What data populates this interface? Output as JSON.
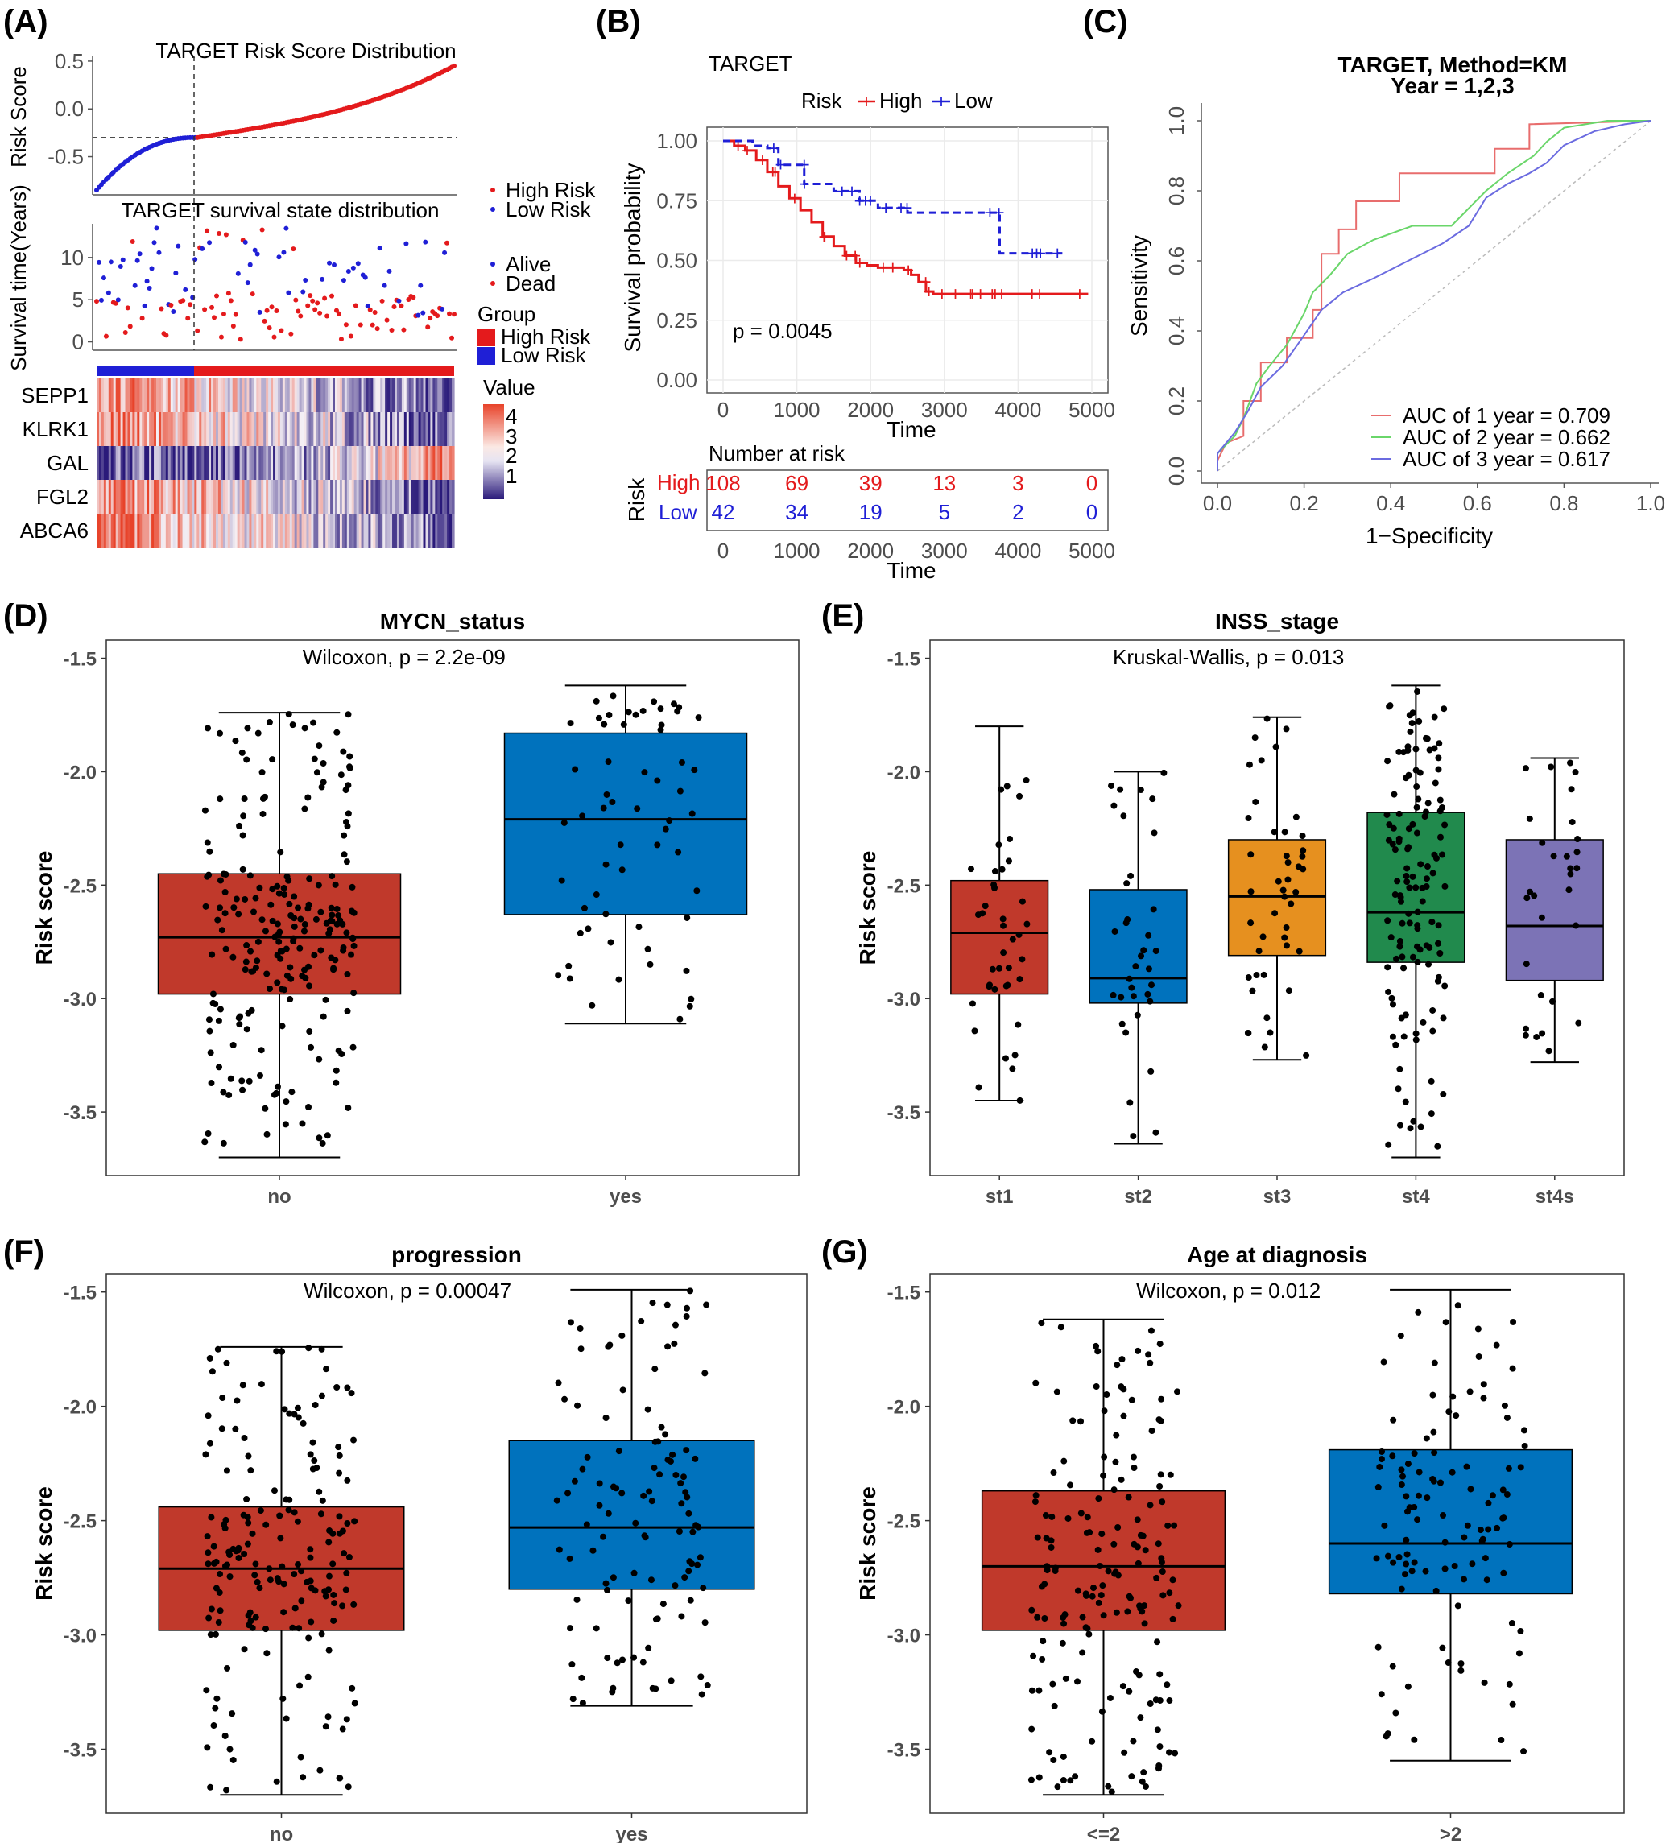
{
  "panel_labels": [
    "(A)",
    "(B)",
    "(C)",
    "(D)",
    "(E)",
    "(F)",
    "(G)"
  ],
  "colors": {
    "high": "#e41a1c",
    "low": "#1f1fd6",
    "red_box": "#c0392b",
    "blue_box": "#0072bd",
    "orange_box": "#e6901f",
    "green_box": "#218a4d",
    "purple_box": "#7c73b6",
    "roc1": "#e86d6d",
    "roc2": "#6ad66a",
    "roc3": "#6b6be0"
  },
  "chart_data": [
    {
      "id": "A-risk",
      "type": "scatter",
      "title": "TARGET Risk Score Distribution",
      "ylabel": "Risk Score",
      "yticks": [
        "0.5",
        "0.0",
        "-0.5"
      ],
      "ylim": [
        -0.9,
        0.55
      ],
      "n_samples": 150,
      "n_low": 42,
      "cutoff": -0.3,
      "min_score": -0.85,
      "max_score": 0.45
    },
    {
      "id": "A-surv",
      "type": "scatter",
      "title": "TARGET survival state distribution",
      "ylabel": "Survival time(Years)",
      "yticks": [
        "10",
        "5",
        "0"
      ],
      "ylim": [
        -1,
        14
      ],
      "legend_risk": [
        "High Risk",
        "Low Risk"
      ],
      "legend_status": [
        "Alive",
        "Dead"
      ]
    },
    {
      "id": "A-heatmap",
      "type": "heatmap",
      "genes": [
        "SEPP1",
        "KLRK1",
        "GAL",
        "FGL2",
        "ABCA6"
      ],
      "group_title": "Group",
      "groups": [
        "High Risk",
        "Low Risk"
      ],
      "value_title": "Value",
      "value_ticks": [
        "4",
        "3",
        "2",
        "1"
      ]
    },
    {
      "id": "B-km",
      "type": "line",
      "title": "TARGET",
      "legend_title": "Risk",
      "legend": [
        "High",
        "Low"
      ],
      "xlabel": "Time",
      "ylabel": "Survival probability",
      "xticks": [
        "0",
        "1000",
        "2000",
        "3000",
        "4000",
        "5000"
      ],
      "yticks": [
        "1.00",
        "0.75",
        "0.50",
        "0.25",
        "0.00"
      ],
      "xlim": [
        0,
        5000
      ],
      "ylim": [
        0,
        1
      ],
      "p_value": "p = 0.0045",
      "series": [
        {
          "name": "High",
          "points": [
            [
              0,
              1
            ],
            [
              150,
              0.98
            ],
            [
              300,
              0.96
            ],
            [
              450,
              0.92
            ],
            [
              600,
              0.87
            ],
            [
              750,
              0.81
            ],
            [
              900,
              0.76
            ],
            [
              1050,
              0.71
            ],
            [
              1200,
              0.66
            ],
            [
              1350,
              0.6
            ],
            [
              1500,
              0.56
            ],
            [
              1650,
              0.52
            ],
            [
              1800,
              0.49
            ],
            [
              1950,
              0.48
            ],
            [
              2100,
              0.47
            ],
            [
              2300,
              0.47
            ],
            [
              2450,
              0.46
            ],
            [
              2550,
              0.44
            ],
            [
              2650,
              0.41
            ],
            [
              2750,
              0.37
            ],
            [
              2850,
              0.36
            ],
            [
              4950,
              0.36
            ]
          ]
        },
        {
          "name": "Low",
          "points": [
            [
              0,
              1
            ],
            [
              300,
              1
            ],
            [
              400,
              0.98
            ],
            [
              600,
              0.97
            ],
            [
              750,
              0.9
            ],
            [
              1100,
              0.82
            ],
            [
              1500,
              0.79
            ],
            [
              1850,
              0.75
            ],
            [
              2100,
              0.72
            ],
            [
              2500,
              0.7
            ],
            [
              3300,
              0.7
            ],
            [
              3700,
              0.7
            ],
            [
              3750,
              0.53
            ],
            [
              4600,
              0.53
            ]
          ]
        }
      ]
    },
    {
      "id": "B-risktable",
      "type": "table",
      "title": "Number at risk",
      "xlabel": "Time",
      "ylabel": "Risk",
      "rows": [
        {
          "name": "High",
          "values": [
            "108",
            "69",
            "39",
            "13",
            "3",
            "0"
          ]
        },
        {
          "name": "Low",
          "values": [
            "42",
            "34",
            "19",
            "5",
            "2",
            "0"
          ]
        }
      ]
    },
    {
      "id": "C-roc",
      "type": "line",
      "title": "TARGET, Method=KM",
      "subtitle": "Year = 1,2,3",
      "xlabel": "1−Specificity",
      "ylabel": "Sensitivity",
      "xticks": [
        "0.0",
        "0.2",
        "0.4",
        "0.6",
        "0.8",
        "1.0"
      ],
      "yticks": [
        "0.0",
        "0.2",
        "0.4",
        "0.6",
        "0.8",
        "1.0"
      ],
      "xlim": [
        0,
        1
      ],
      "ylim": [
        0,
        1
      ],
      "series": [
        {
          "name": "AUC of 1 year = 0.709",
          "points": [
            [
              0,
              0
            ],
            [
              0,
              0.03
            ],
            [
              0.02,
              0.08
            ],
            [
              0.06,
              0.1
            ],
            [
              0.06,
              0.2
            ],
            [
              0.1,
              0.2
            ],
            [
              0.1,
              0.31
            ],
            [
              0.16,
              0.31
            ],
            [
              0.16,
              0.38
            ],
            [
              0.22,
              0.38
            ],
            [
              0.22,
              0.46
            ],
            [
              0.24,
              0.46
            ],
            [
              0.24,
              0.62
            ],
            [
              0.28,
              0.62
            ],
            [
              0.28,
              0.69
            ],
            [
              0.32,
              0.69
            ],
            [
              0.32,
              0.77
            ],
            [
              0.42,
              0.77
            ],
            [
              0.42,
              0.85
            ],
            [
              0.64,
              0.85
            ],
            [
              0.64,
              0.92
            ],
            [
              0.72,
              0.92
            ],
            [
              0.72,
              0.99
            ],
            [
              1,
              1
            ]
          ]
        },
        {
          "name": "AUC of 2 year = 0.662",
          "points": [
            [
              0,
              0
            ],
            [
              0,
              0.05
            ],
            [
              0.04,
              0.1
            ],
            [
              0.06,
              0.15
            ],
            [
              0.09,
              0.25
            ],
            [
              0.12,
              0.3
            ],
            [
              0.16,
              0.36
            ],
            [
              0.2,
              0.45
            ],
            [
              0.22,
              0.51
            ],
            [
              0.26,
              0.56
            ],
            [
              0.3,
              0.62
            ],
            [
              0.36,
              0.66
            ],
            [
              0.45,
              0.7
            ],
            [
              0.54,
              0.7
            ],
            [
              0.58,
              0.75
            ],
            [
              0.62,
              0.8
            ],
            [
              0.67,
              0.85
            ],
            [
              0.73,
              0.9
            ],
            [
              0.76,
              0.94
            ],
            [
              0.8,
              0.98
            ],
            [
              0.9,
              1
            ],
            [
              1,
              1
            ]
          ]
        },
        {
          "name": "AUC of 3 year = 0.617",
          "points": [
            [
              0,
              0
            ],
            [
              0,
              0.05
            ],
            [
              0.04,
              0.11
            ],
            [
              0.07,
              0.17
            ],
            [
              0.1,
              0.24
            ],
            [
              0.15,
              0.3
            ],
            [
              0.19,
              0.37
            ],
            [
              0.24,
              0.46
            ],
            [
              0.29,
              0.51
            ],
            [
              0.36,
              0.55
            ],
            [
              0.44,
              0.6
            ],
            [
              0.52,
              0.65
            ],
            [
              0.58,
              0.7
            ],
            [
              0.62,
              0.78
            ],
            [
              0.67,
              0.82
            ],
            [
              0.72,
              0.85
            ],
            [
              0.76,
              0.88
            ],
            [
              0.8,
              0.93
            ],
            [
              0.87,
              0.97
            ],
            [
              0.94,
              0.99
            ],
            [
              1,
              1
            ]
          ]
        }
      ]
    },
    {
      "id": "D",
      "type": "bar",
      "subtype": "boxplot",
      "title": "MYCN_status",
      "stat": "Wilcoxon, p = 2.2e-09",
      "ylabel": "Risk score",
      "yticks": [
        "-1.5",
        "-2.0",
        "-2.5",
        "-3.0",
        "-3.5"
      ],
      "ylim": [
        -3.78,
        -1.42
      ],
      "groups": [
        {
          "label": "no",
          "color": "#c0392b",
          "n": 220,
          "min": -3.7,
          "q1": -2.98,
          "median": -2.73,
          "q3": -2.45,
          "max": -1.74,
          "spread": 0.62
        },
        {
          "label": "yes",
          "color": "#0072bd",
          "n": 60,
          "min": -3.11,
          "q1": -2.63,
          "median": -2.21,
          "q3": -1.83,
          "max": -1.62,
          "spread": 0.62
        }
      ]
    },
    {
      "id": "E",
      "type": "bar",
      "subtype": "boxplot",
      "title": "INSS_stage",
      "stat": "Kruskal-Wallis, p = 0.013",
      "ylabel": "Risk score",
      "yticks": [
        "-1.5",
        "-2.0",
        "-2.5",
        "-3.0",
        "-3.5"
      ],
      "ylim": [
        -3.78,
        -1.42
      ],
      "groups": [
        {
          "label": "st1",
          "color": "#c0392b",
          "n": 40,
          "min": -3.45,
          "q1": -2.98,
          "median": -2.71,
          "q3": -2.48,
          "max": -1.8,
          "spread": 0.6
        },
        {
          "label": "st2",
          "color": "#0072bd",
          "n": 35,
          "min": -3.64,
          "q1": -3.02,
          "median": -2.91,
          "q3": -2.52,
          "max": -2.0,
          "spread": 0.6
        },
        {
          "label": "st3",
          "color": "#e6901f",
          "n": 45,
          "min": -3.27,
          "q1": -2.81,
          "median": -2.55,
          "q3": -2.3,
          "max": -1.76,
          "spread": 0.6
        },
        {
          "label": "st4",
          "color": "#218a4d",
          "n": 130,
          "min": -3.7,
          "q1": -2.84,
          "median": -2.62,
          "q3": -2.18,
          "max": -1.62,
          "spread": 0.6
        },
        {
          "label": "st4s",
          "color": "#7c73b6",
          "n": 30,
          "min": -3.28,
          "q1": -2.92,
          "median": -2.68,
          "q3": -2.3,
          "max": -1.94,
          "spread": 0.6
        }
      ]
    },
    {
      "id": "F",
      "type": "bar",
      "subtype": "boxplot",
      "title": "progression",
      "stat": "Wilcoxon, p = 0.00047",
      "ylabel": "Risk score",
      "yticks": [
        "-1.5",
        "-2.0",
        "-2.5",
        "-3.0",
        "-3.5"
      ],
      "ylim": [
        -3.78,
        -1.42
      ],
      "groups": [
        {
          "label": "no",
          "color": "#c0392b",
          "n": 180,
          "min": -3.7,
          "q1": -2.98,
          "median": -2.71,
          "q3": -2.44,
          "max": -1.74,
          "spread": 0.62
        },
        {
          "label": "yes",
          "color": "#0072bd",
          "n": 110,
          "min": -3.31,
          "q1": -2.8,
          "median": -2.53,
          "q3": -2.15,
          "max": -1.49,
          "spread": 0.62
        }
      ]
    },
    {
      "id": "G",
      "type": "bar",
      "subtype": "boxplot",
      "title": "Age at diagnosis",
      "stat": "Wilcoxon, p = 0.012",
      "ylabel": "Risk score",
      "yticks": [
        "-1.5",
        "-2.0",
        "-2.5",
        "-3.0",
        "-3.5"
      ],
      "ylim": [
        -3.78,
        -1.42
      ],
      "groups": [
        {
          "label": "<=2",
          "color": "#c0392b",
          "n": 170,
          "min": -3.7,
          "q1": -2.98,
          "median": -2.7,
          "q3": -2.37,
          "max": -1.62,
          "spread": 0.62
        },
        {
          "label": ">2",
          "color": "#0072bd",
          "n": 110,
          "min": -3.55,
          "q1": -2.82,
          "median": -2.6,
          "q3": -2.19,
          "max": -1.49,
          "spread": 0.62
        }
      ]
    }
  ]
}
